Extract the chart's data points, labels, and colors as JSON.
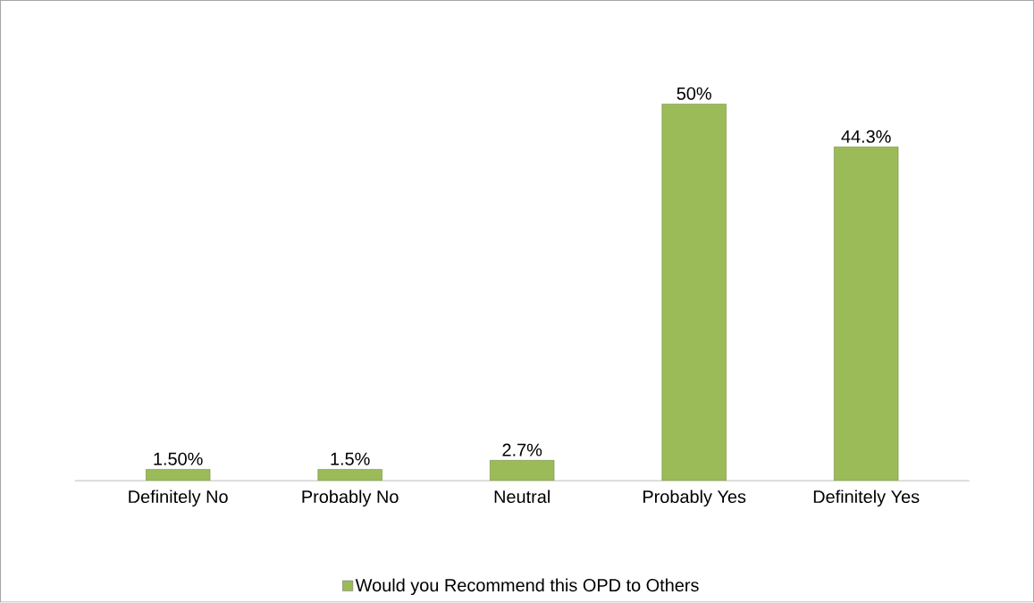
{
  "chart_data": {
    "type": "bar",
    "categories": [
      "Definitely No",
      "Probably No",
      "Neutral",
      "Probably Yes",
      "Definitely Yes"
    ],
    "series": [
      {
        "name": "Would you Recommend this OPD to Others",
        "color": "#9bbb59",
        "values": [
          1.5,
          1.5,
          2.7,
          50,
          44.3
        ],
        "value_labels": [
          "1.50%",
          "1.5%",
          "2.7%",
          "50%",
          "44.3%"
        ]
      }
    ],
    "legend": "bottom"
  }
}
